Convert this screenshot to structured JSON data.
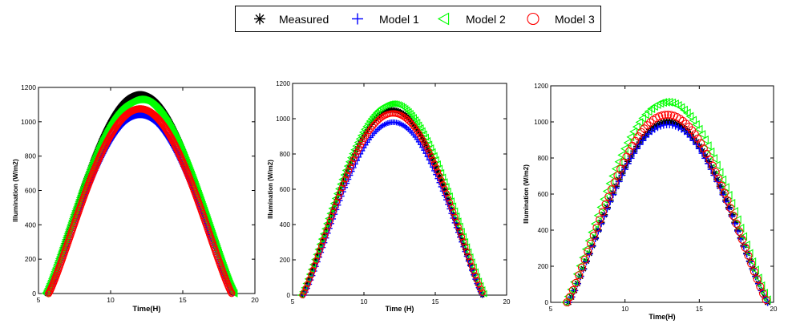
{
  "legend": {
    "entries": [
      {
        "label": "Measured",
        "marker": "asterisk",
        "color": "#000000"
      },
      {
        "label": "Model 1",
        "marker": "plus",
        "color": "#0000ff"
      },
      {
        "label": "Model 2",
        "marker": "left-triangle",
        "color": "#00ff00"
      },
      {
        "label": "Model 3",
        "marker": "circle",
        "color": "#ff0000"
      }
    ]
  },
  "chart_data": [
    {
      "type": "scatter",
      "title": "",
      "xlabel": "Time(H)",
      "ylabel": "Illumination (W/m2)",
      "xlim": [
        5,
        20
      ],
      "ylim": [
        0,
        1200
      ],
      "xticks": [
        "5",
        "10",
        "15",
        "20"
      ],
      "yticks": [
        "0",
        "200",
        "400",
        "600",
        "800",
        "1000",
        "1200"
      ],
      "series": [
        {
          "name": "Measured",
          "marker": "asterisk",
          "color": "#000000",
          "start": 5.6,
          "end": 18.5,
          "peak": 1160
        },
        {
          "name": "Model 1",
          "marker": "plus",
          "color": "#0000ff",
          "start": 5.6,
          "end": 18.5,
          "peak": 1040
        },
        {
          "name": "Model 2",
          "marker": "left-triangle",
          "color": "#00ff00",
          "start": 5.5,
          "end": 18.6,
          "peak": 1130
        },
        {
          "name": "Model 3",
          "marker": "circle",
          "color": "#ff0000",
          "start": 5.7,
          "end": 18.4,
          "peak": 1075
        }
      ]
    },
    {
      "type": "scatter",
      "title": "",
      "xlabel": "Time (H)",
      "ylabel": "Illumination (W/m2)",
      "xlim": [
        5,
        20
      ],
      "ylim": [
        0,
        1200
      ],
      "xticks": [
        "5",
        "10",
        "15",
        "20"
      ],
      "yticks": [
        "0",
        "200",
        "400",
        "600",
        "800",
        "1000",
        "1200"
      ],
      "series": [
        {
          "name": "Measured",
          "marker": "asterisk",
          "color": "#000000",
          "start": 5.7,
          "end": 18.3,
          "peak": 1050
        },
        {
          "name": "Model 1",
          "marker": "plus",
          "color": "#0000ff",
          "start": 5.8,
          "end": 18.3,
          "peak": 980
        },
        {
          "name": "Model 2",
          "marker": "left-triangle",
          "color": "#00ff00",
          "start": 5.6,
          "end": 18.5,
          "peak": 1085
        },
        {
          "name": "Model 3",
          "marker": "circle",
          "color": "#ff0000",
          "start": 5.7,
          "end": 18.4,
          "peak": 1030
        }
      ]
    },
    {
      "type": "scatter",
      "title": "",
      "xlabel": "Time(H)",
      "ylabel": "Illumination (W/m2)",
      "xlim": [
        5,
        20
      ],
      "ylim": [
        0,
        1200
      ],
      "xticks": [
        "5",
        "10",
        "15",
        "20"
      ],
      "yticks": [
        "0",
        "200",
        "400",
        "600",
        "800",
        "1000",
        "1200"
      ],
      "series": [
        {
          "name": "Measured",
          "marker": "asterisk",
          "color": "#000000",
          "start": 6.2,
          "end": 19.6,
          "peak": 1000
        },
        {
          "name": "Model 1",
          "marker": "plus",
          "color": "#0000ff",
          "start": 6.2,
          "end": 19.6,
          "peak": 985
        },
        {
          "name": "Model 2",
          "marker": "left-triangle",
          "color": "#00ff00",
          "start": 6.0,
          "end": 19.7,
          "peak": 1110
        },
        {
          "name": "Model 3",
          "marker": "circle",
          "color": "#ff0000",
          "start": 6.1,
          "end": 19.6,
          "peak": 1040
        }
      ]
    }
  ]
}
